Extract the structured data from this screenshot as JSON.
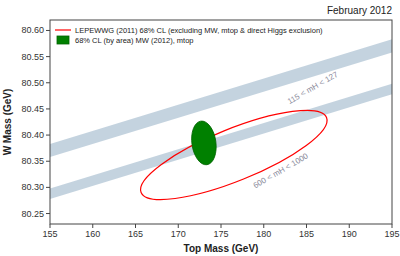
{
  "chart_data": {
    "type": "band_ellipse",
    "title": "February 2012",
    "x_label": "Top Mass (GeV)",
    "y_label": "W Mass (GeV)",
    "xlim": [
      155,
      195
    ],
    "ylim": [
      80.23,
      80.62
    ],
    "xticks": [
      155,
      160,
      165,
      170,
      175,
      180,
      185,
      190,
      195
    ],
    "yticks": [
      80.25,
      {
        "value": 80.3,
        "label": "80.30"
      },
      80.35,
      {
        "value": 80.4,
        "label": "80.40"
      },
      80.45,
      {
        "value": 80.5,
        "label": "80.50"
      },
      80.55,
      {
        "value": 80.6,
        "label": "80.60"
      }
    ],
    "grid": false,
    "legend": "upper left",
    "series": [
      {
        "type": "band",
        "x": [
          155,
          195
        ],
        "lower": [
          80.358,
          80.558
        ],
        "upper": [
          80.383,
          80.583
        ],
        "color": "#b0c4d4"
      },
      {
        "type": "band",
        "x": [
          155,
          195
        ],
        "lower": [
          80.278,
          80.478
        ],
        "upper": [
          80.298,
          80.498
        ],
        "color": "#b0c4d4"
      },
      {
        "type": "ellipse",
        "name": "LEPEWWG (2011) 68% CL (excluding MW, mtop & direct Higgs exclusion)",
        "x": [
          176.5
        ],
        "values": [
          80.362
        ],
        "color": "red"
      },
      {
        "type": "ellipse",
        "name": "68% CL (by area) MW (2012), mtop",
        "x": [
          173.0
        ],
        "values": [
          80.385
        ],
        "color": "green"
      }
    ],
    "annotations": [
      {
        "text": "115 < mH < 127",
        "x": 183,
        "y": 80.455,
        "color": "#888899"
      },
      {
        "text": "600 < mH < 1000",
        "x": 179,
        "y": 80.294,
        "color": "#888899"
      }
    ]
  }
}
